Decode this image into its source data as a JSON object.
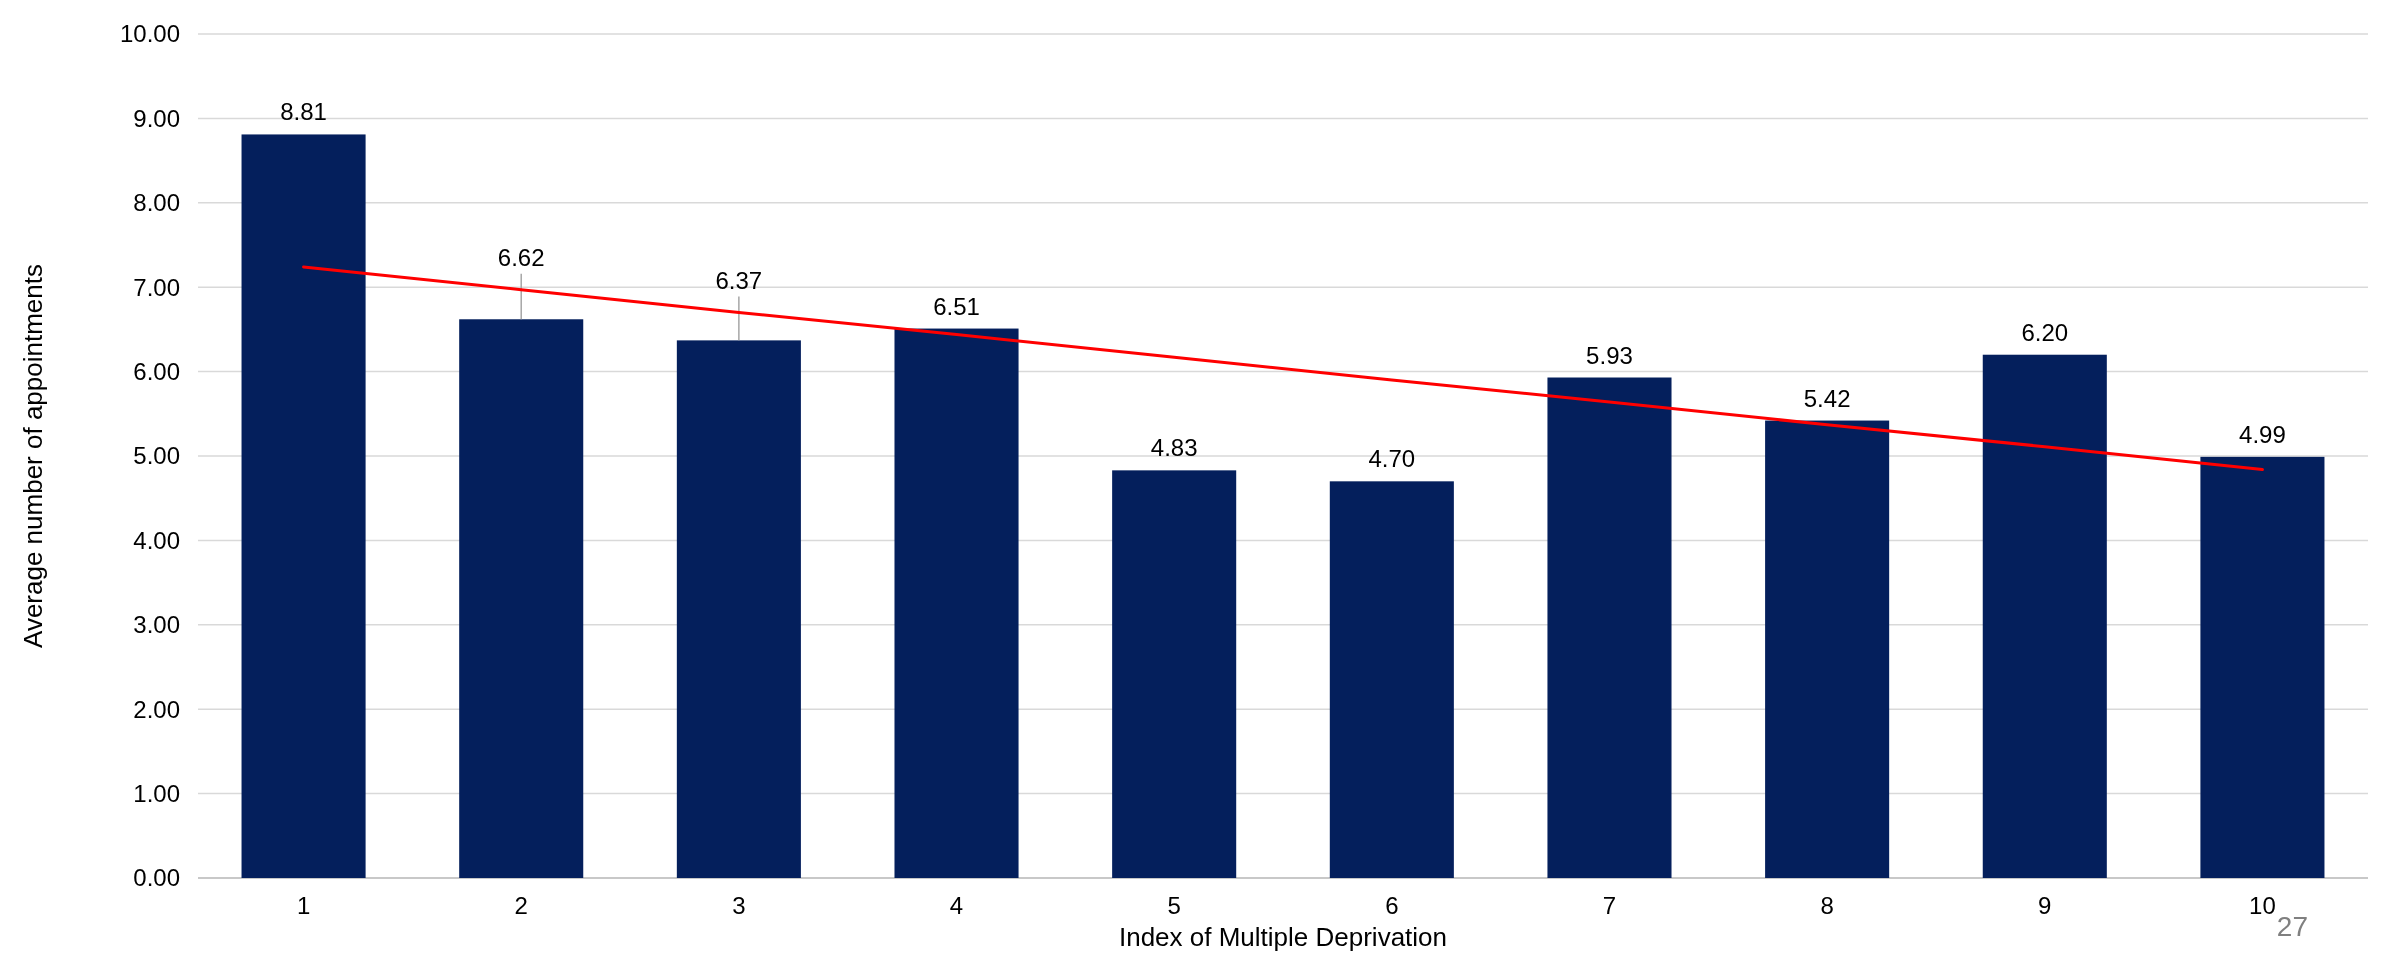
{
  "chart_data": {
    "type": "bar",
    "xlabel": "Index of Multiple Deprivation",
    "ylabel": "Average number of appointments",
    "categories": [
      "1",
      "2",
      "3",
      "4",
      "5",
      "6",
      "7",
      "8",
      "9",
      "10"
    ],
    "series": [
      {
        "color": "#041f5c",
        "values": [
          8.81,
          6.62,
          6.37,
          6.51,
          4.83,
          4.7,
          5.93,
          5.42,
          6.2,
          4.99
        ],
        "value_labels": [
          "8.81",
          "6.62",
          "6.37",
          "6.51",
          "4.83",
          "4.70",
          "5.93",
          "5.42",
          "6.20",
          "4.99"
        ]
      },
      {
        "type": "line",
        "color": "#ff0000",
        "values": [
          7.24,
          6.97,
          6.7,
          6.44,
          6.17,
          5.9,
          5.64,
          5.37,
          5.11,
          4.84
        ]
      }
    ],
    "ylim": [
      0,
      10
    ],
    "yticks": [
      {
        "value": 0,
        "label": "0.00"
      },
      {
        "value": 1,
        "label": "1.00"
      },
      {
        "value": 2,
        "label": "2.00"
      },
      {
        "value": 3,
        "label": "3.00"
      },
      {
        "value": 4,
        "label": "4.00"
      },
      {
        "value": 5,
        "label": "5.00"
      },
      {
        "value": 6,
        "label": "6.00"
      },
      {
        "value": 7,
        "label": "7.00"
      },
      {
        "value": 8,
        "label": "8.00"
      },
      {
        "value": 9,
        "label": "9.00"
      },
      {
        "value": 10,
        "label": "10.00"
      }
    ],
    "grid": "y",
    "annotations": [
      "27"
    ]
  }
}
